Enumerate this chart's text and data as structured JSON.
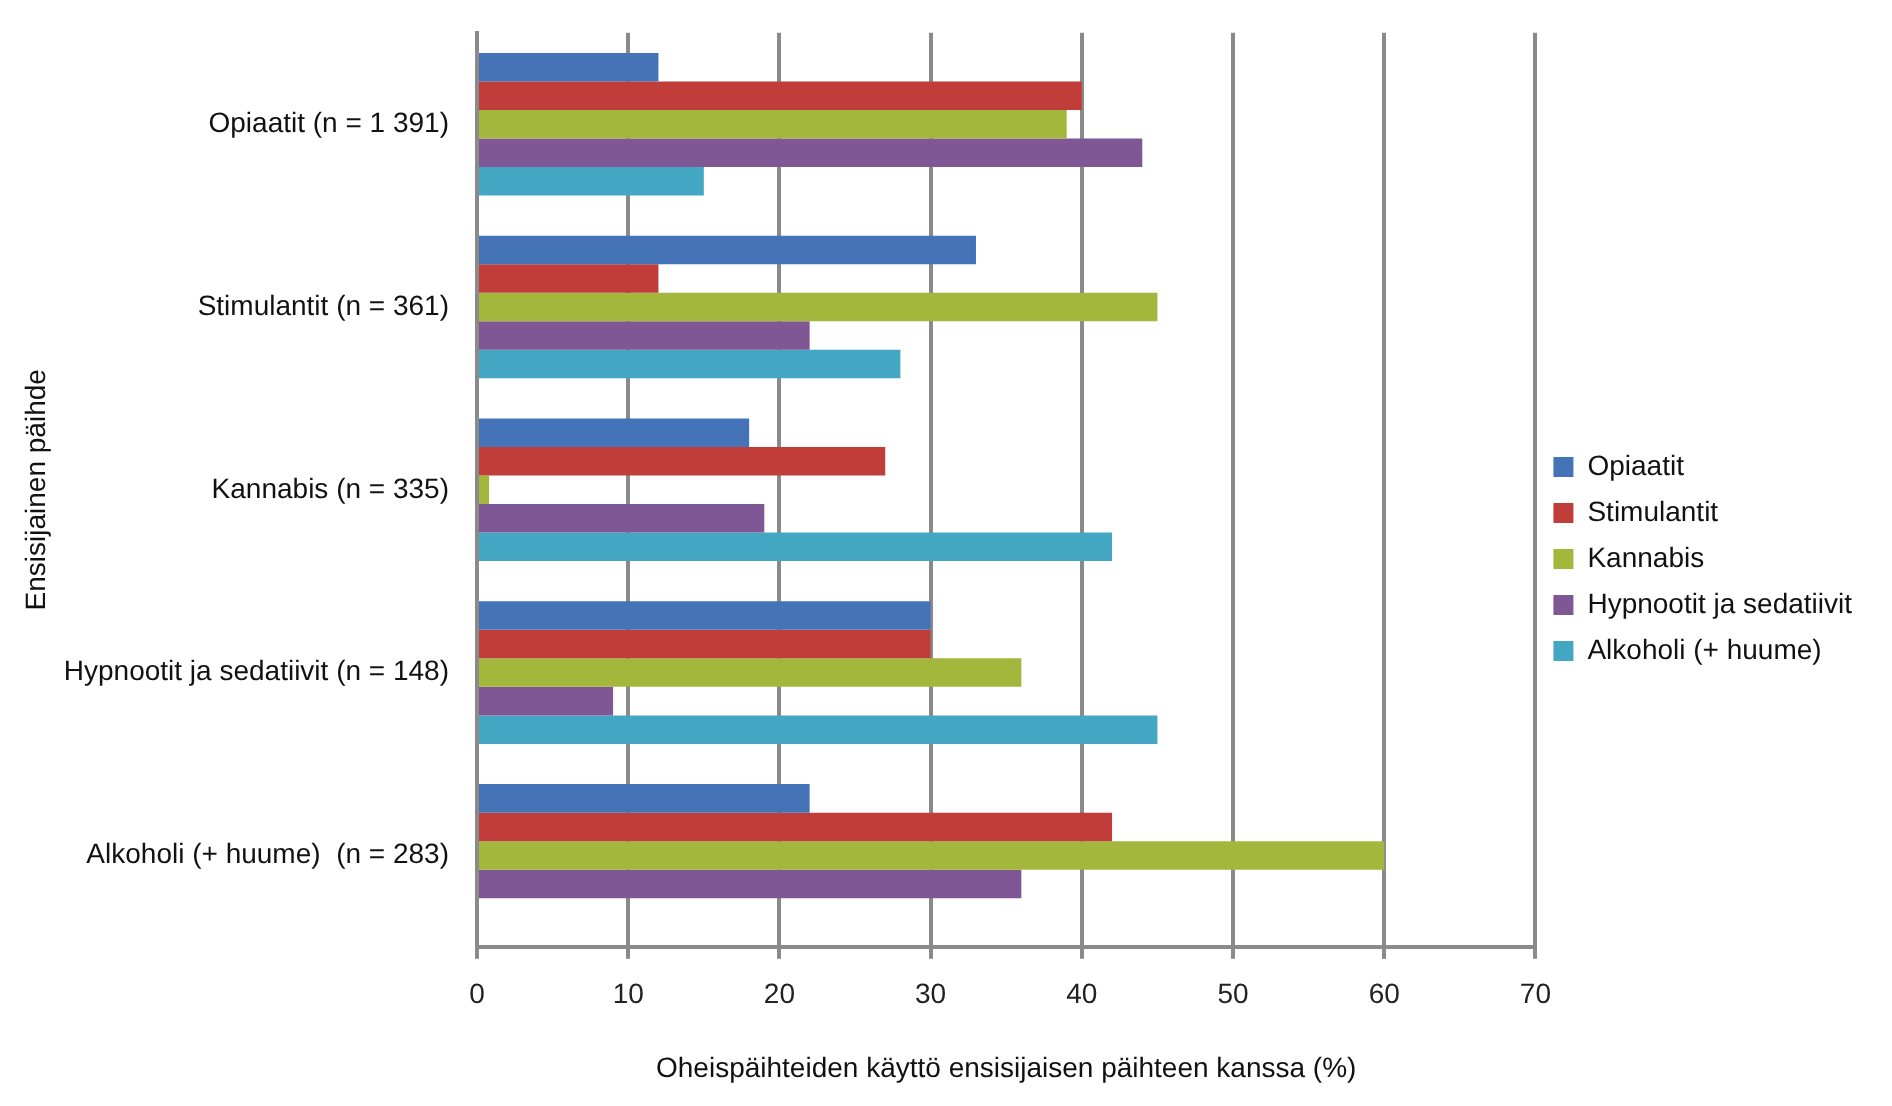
{
  "chart_data": {
    "type": "bar",
    "orientation": "horizontal",
    "categories": [
      "Opiaatit (n = 1 391)",
      "Stimulantit (n = 361)",
      "Kannabis (n = 335)",
      "Hypnootit ja sedatiivit (n = 148)",
      "Alkoholi (+ huume)  (n = 283)"
    ],
    "series": [
      {
        "name": "Opiaatit",
        "color": "#4473b8",
        "values": [
          12,
          33,
          18,
          30,
          22
        ]
      },
      {
        "name": "Stimulantit",
        "color": "#c03d3a",
        "values": [
          40,
          12,
          27,
          30,
          42
        ]
      },
      {
        "name": "Kannabis",
        "color": "#a3b73c",
        "values": [
          39,
          45,
          0.8,
          36,
          60
        ]
      },
      {
        "name": "Hypnootit ja sedatiivit",
        "color": "#7f5794",
        "values": [
          44,
          22,
          19,
          9,
          36
        ]
      },
      {
        "name": "Alkoholi (+ huume)",
        "color": "#43a7c3",
        "values": [
          15,
          28,
          42,
          45,
          null
        ]
      }
    ],
    "xlim": [
      0,
      70
    ],
    "xticks": [
      0,
      10,
      20,
      30,
      40,
      50,
      60,
      70
    ],
    "xlabel": "Oheispäihteiden käyttö ensisijaisen päihteen kanssa (%)",
    "ylabel": "Ensisijainen päihde",
    "grid": "x",
    "legend": "right"
  }
}
